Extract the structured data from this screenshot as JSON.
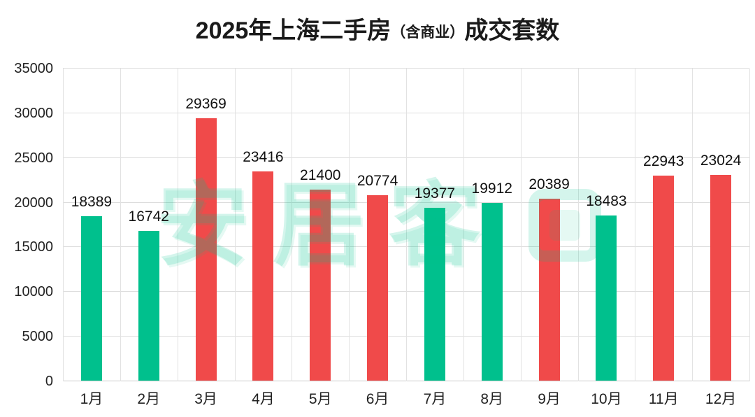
{
  "title": {
    "prefix": "2025年上海二手房",
    "paren": "（含商业）",
    "suffix": "成交套数"
  },
  "watermark": {
    "text": "安居客"
  },
  "colors": {
    "green_bar": "#00c08d",
    "red_bar": "#f04a4a",
    "watermark_tint": "#00c18e"
  },
  "chart_data": {
    "type": "bar",
    "title": "2025年上海二手房（含商业）成交套数",
    "categories": [
      "1月",
      "2月",
      "3月",
      "4月",
      "5月",
      "6月",
      "7月",
      "8月",
      "9月",
      "10月",
      "11月",
      "12月"
    ],
    "values": [
      18389,
      16742,
      29369,
      23416,
      21400,
      20774,
      19377,
      19912,
      20389,
      18483,
      22943,
      23024
    ],
    "colors": [
      "#00c08d",
      "#00c08d",
      "#f04a4a",
      "#f04a4a",
      "#f04a4a",
      "#f04a4a",
      "#00c08d",
      "#00c08d",
      "#f04a4a",
      "#00c08d",
      "#f04a4a",
      "#f04a4a"
    ],
    "xlabel": "",
    "ylabel": "",
    "ylim": [
      0,
      35000
    ],
    "yticks": [
      0,
      5000,
      10000,
      15000,
      20000,
      25000,
      30000,
      35000
    ],
    "grid": true,
    "data_labels": true,
    "legend": false
  }
}
